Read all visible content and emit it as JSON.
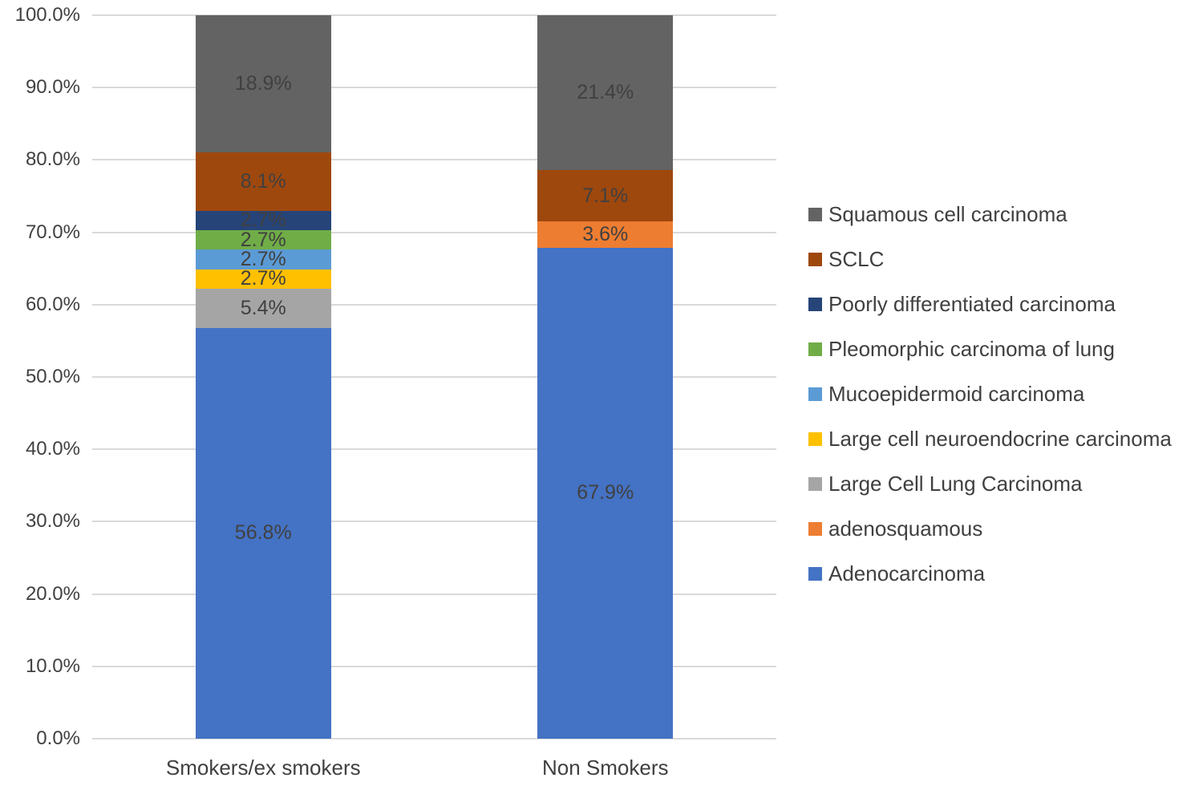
{
  "chart_data": {
    "type": "bar",
    "stacked": true,
    "percent_stacked": true,
    "categories": [
      "Smokers/ex smokers",
      "Non Smokers"
    ],
    "series": [
      {
        "name": "Adenocarcinoma",
        "color": "#4472C4",
        "values": [
          56.8,
          67.9
        ]
      },
      {
        "name": "adenosquamous",
        "color": "#ED7D31",
        "values": [
          0,
          3.6
        ]
      },
      {
        "name": "Large Cell Lung Carcinoma",
        "color": "#A5A5A5",
        "values": [
          5.4,
          0
        ]
      },
      {
        "name": "Large cell neuroendocrine carcinoma",
        "color": "#FFC000",
        "values": [
          2.7,
          0
        ]
      },
      {
        "name": "Mucoepidermoid carcinoma",
        "color": "#5B9BD5",
        "values": [
          2.7,
          0
        ]
      },
      {
        "name": "Pleomorphic carcinoma of lung",
        "color": "#70AD47",
        "values": [
          2.7,
          0
        ]
      },
      {
        "name": "Poorly differentiated carcinoma",
        "color": "#264478",
        "values": [
          2.7,
          0
        ]
      },
      {
        "name": "SCLC",
        "color": "#9E480E",
        "values": [
          8.1,
          7.1
        ]
      },
      {
        "name": "Squamous cell carcinoma",
        "color": "#636363",
        "values": [
          18.9,
          21.4
        ]
      }
    ],
    "segment_labels": {
      "Smokers/ex smokers": [
        "56.8%",
        "5.4%",
        "2.7%",
        "2.7%",
        "2.7%",
        "2.7%",
        "8.1%",
        "18.9%"
      ],
      "Non Smokers": [
        "67.9%",
        "3.6%",
        "7.1%",
        "21.4%"
      ]
    },
    "y_ticks": [
      "100.0%",
      "90.0%",
      "80.0%",
      "70.0%",
      "60.0%",
      "50.0%",
      "40.0%",
      "30.0%",
      "20.0%",
      "10.0%",
      "0.0%"
    ],
    "ylim": [
      0,
      100
    ],
    "grid": true,
    "legend_position": "right",
    "legend_order_top_to_bottom": [
      "Squamous cell carcinoma",
      "SCLC",
      "Poorly differentiated carcinoma",
      "Pleomorphic carcinoma of lung",
      "Mucoepidermoid carcinoma",
      "Large cell neuroendocrine carcinoma",
      "Large Cell Lung Carcinoma",
      "adenosquamous",
      "Adenocarcinoma"
    ]
  },
  "colors": {
    "gridline": "#D9D9D9",
    "text": "#404040",
    "background": "#FFFFFF"
  }
}
